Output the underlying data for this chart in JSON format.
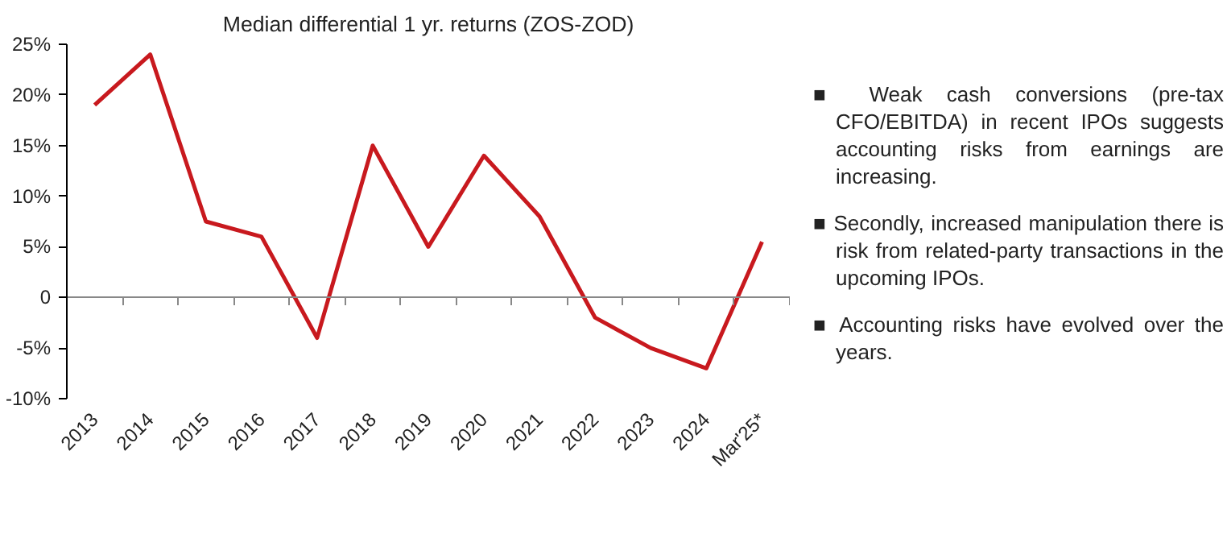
{
  "chart_data": {
    "type": "line",
    "title": "Median differential 1 yr. returns (ZOS-ZOD)",
    "categories": [
      "2013",
      "2014",
      "2015",
      "2016",
      "2017",
      "2018",
      "2019",
      "2020",
      "2021",
      "2022",
      "2023",
      "2024",
      "Mar'25*"
    ],
    "series": [
      {
        "color": "#c8191e",
        "values": [
          19,
          24,
          7.5,
          6,
          -4,
          15,
          5,
          14,
          8,
          -2,
          -5,
          -7,
          5.5
        ]
      }
    ],
    "ylim": [
      -10,
      25
    ],
    "yticks": [
      {
        "value": -10,
        "label": "-10%"
      },
      {
        "value": -5,
        "label": "-5%"
      },
      {
        "value": 0,
        "label": "0"
      },
      {
        "value": 5,
        "label": "5%"
      },
      {
        "value": 10,
        "label": "10%"
      },
      {
        "value": 15,
        "label": "15%"
      },
      {
        "value": 20,
        "label": "20%"
      },
      {
        "value": 25,
        "label": "25%"
      }
    ],
    "marker": "none",
    "line_style": "solid",
    "annotations": [
      "■ Weak cash conversions (pre-tax CFO/EBITDA) in recent IPOs suggests accounting risks from earnings are increasing.",
      "■ Secondly, increased manipulation there is risk from related-party transactions in the upcoming IPOs.",
      "■ Accounting risks have evolved over the years."
    ]
  }
}
